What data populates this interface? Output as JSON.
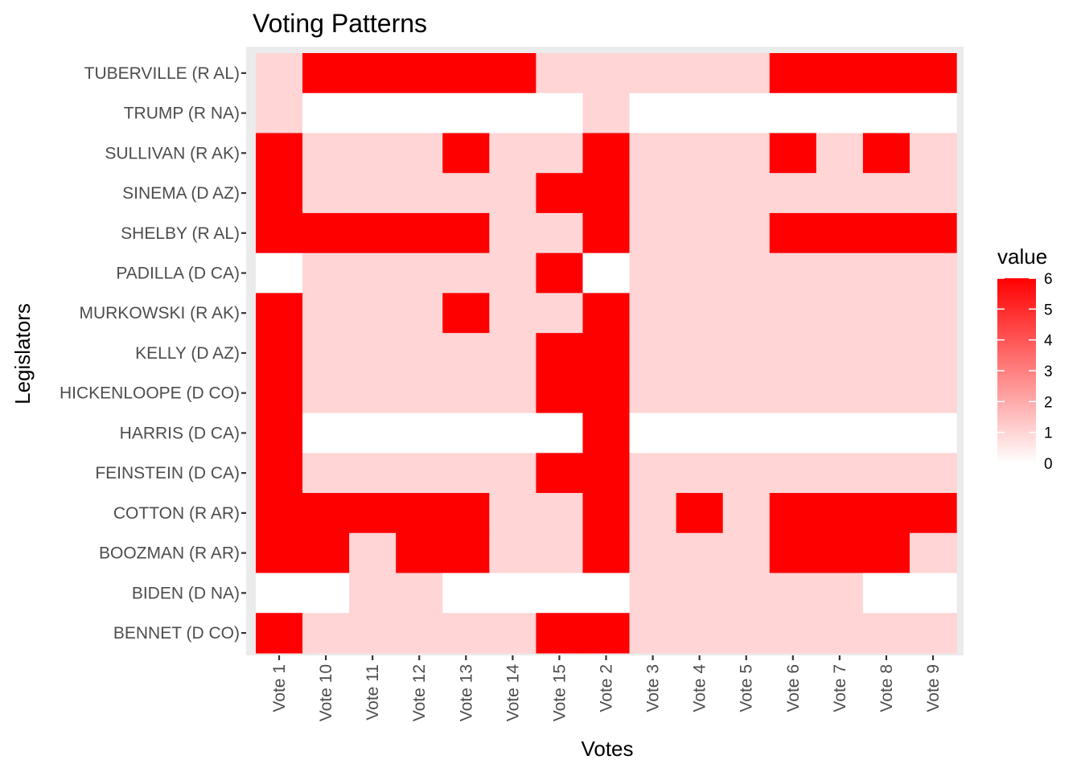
{
  "chart_data": {
    "type": "heatmap",
    "title": "Voting Patterns",
    "xlabel": "Votes",
    "ylabel": "Legislators",
    "x": [
      "Vote 1",
      "Vote 10",
      "Vote 11",
      "Vote 12",
      "Vote 13",
      "Vote 14",
      "Vote 15",
      "Vote 2",
      "Vote 3",
      "Vote 4",
      "Vote 5",
      "Vote 6",
      "Vote 7",
      "Vote 8",
      "Vote 9"
    ],
    "y": [
      "TUBERVILLE (R AL)",
      "TRUMP (R NA)",
      "SULLIVAN (R AK)",
      "SINEMA (D AZ)",
      "SHELBY (R AL)",
      "PADILLA (D CA)",
      "MURKOWSKI (R AK)",
      "KELLY (D AZ)",
      "HICKENLOOPE (D CO)",
      "HARRIS (D CA)",
      "FEINSTEIN (D CA)",
      "COTTON (R AR)",
      "BOOZMAN (R AR)",
      "BIDEN (D NA)",
      "BENNET (D CO)"
    ],
    "values": [
      [
        1,
        6,
        6,
        6,
        6,
        6,
        1,
        1,
        1,
        1,
        1,
        6,
        6,
        6,
        6
      ],
      [
        1,
        0,
        0,
        0,
        0,
        0,
        0,
        1,
        0,
        0,
        0,
        0,
        0,
        0,
        0
      ],
      [
        6,
        1,
        1,
        1,
        6,
        1,
        1,
        6,
        1,
        1,
        1,
        6,
        1,
        6,
        1
      ],
      [
        6,
        1,
        1,
        1,
        1,
        1,
        6,
        6,
        1,
        1,
        1,
        1,
        1,
        1,
        1
      ],
      [
        6,
        6,
        6,
        6,
        6,
        1,
        1,
        6,
        1,
        1,
        1,
        6,
        6,
        6,
        6
      ],
      [
        0,
        1,
        1,
        1,
        1,
        1,
        6,
        0,
        1,
        1,
        1,
        1,
        1,
        1,
        1
      ],
      [
        6,
        1,
        1,
        1,
        6,
        1,
        1,
        6,
        1,
        1,
        1,
        1,
        1,
        1,
        1
      ],
      [
        6,
        1,
        1,
        1,
        1,
        1,
        6,
        6,
        1,
        1,
        1,
        1,
        1,
        1,
        1
      ],
      [
        6,
        1,
        1,
        1,
        1,
        1,
        6,
        6,
        1,
        1,
        1,
        1,
        1,
        1,
        1
      ],
      [
        6,
        0,
        0,
        0,
        0,
        0,
        0,
        6,
        0,
        0,
        0,
        0,
        0,
        0,
        0
      ],
      [
        6,
        1,
        1,
        1,
        1,
        1,
        6,
        6,
        1,
        1,
        1,
        1,
        1,
        1,
        1
      ],
      [
        6,
        6,
        6,
        6,
        6,
        1,
        1,
        6,
        1,
        6,
        1,
        6,
        6,
        6,
        6
      ],
      [
        6,
        6,
        1,
        6,
        6,
        1,
        1,
        6,
        1,
        1,
        1,
        6,
        6,
        6,
        1
      ],
      [
        0,
        0,
        1,
        1,
        0,
        0,
        0,
        0,
        1,
        1,
        1,
        1,
        1,
        0,
        0
      ],
      [
        6,
        1,
        1,
        1,
        1,
        1,
        6,
        6,
        1,
        1,
        1,
        1,
        1,
        1,
        1
      ]
    ],
    "legend": {
      "title": "value",
      "ticks": [
        0,
        1,
        2,
        3,
        4,
        5,
        6
      ],
      "range": [
        0,
        6
      ],
      "low_color": "#ffffff",
      "high_color": "#ff0000",
      "placement": "right"
    },
    "panel_background": "#ebebeb",
    "grid": true
  }
}
